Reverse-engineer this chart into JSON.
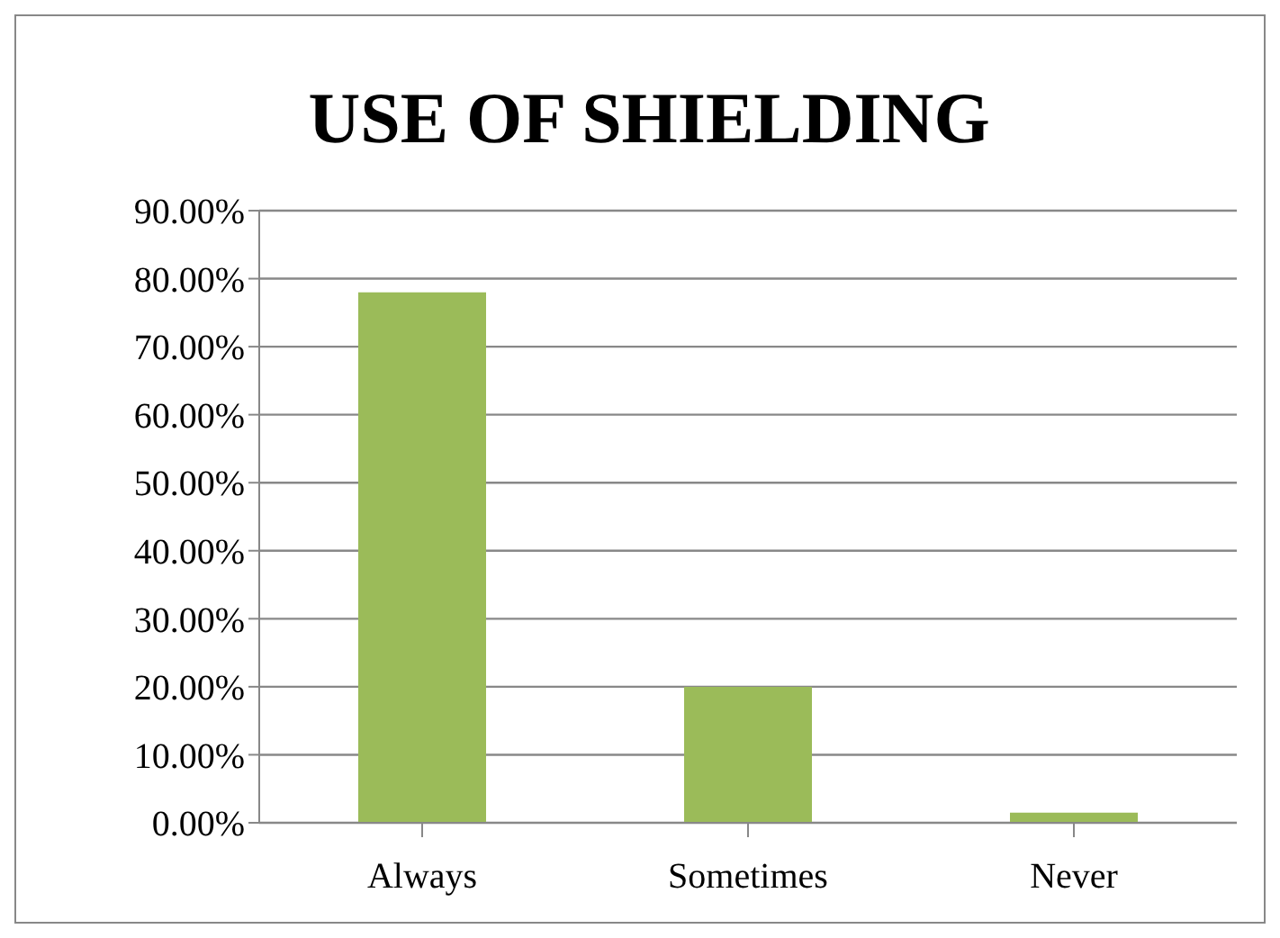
{
  "chart_data": {
    "type": "bar",
    "title": "USE OF SHIELDING",
    "categories": [
      "Always",
      "Sometimes",
      "Never"
    ],
    "values": [
      78,
      20,
      1.5
    ],
    "color": "#9bbb59",
    "ylim": [
      0,
      90
    ],
    "yticks": [
      {
        "value": 0,
        "label": "0.00%"
      },
      {
        "value": 10,
        "label": "10.00%"
      },
      {
        "value": 20,
        "label": "20.00%"
      },
      {
        "value": 30,
        "label": "30.00%"
      },
      {
        "value": 40,
        "label": "40.00%"
      },
      {
        "value": 50,
        "label": "50.00%"
      },
      {
        "value": 60,
        "label": "60.00%"
      },
      {
        "value": 70,
        "label": "70.00%"
      },
      {
        "value": 80,
        "label": "80.00%"
      },
      {
        "value": 90,
        "label": "90.00%"
      }
    ],
    "grid": "y"
  }
}
